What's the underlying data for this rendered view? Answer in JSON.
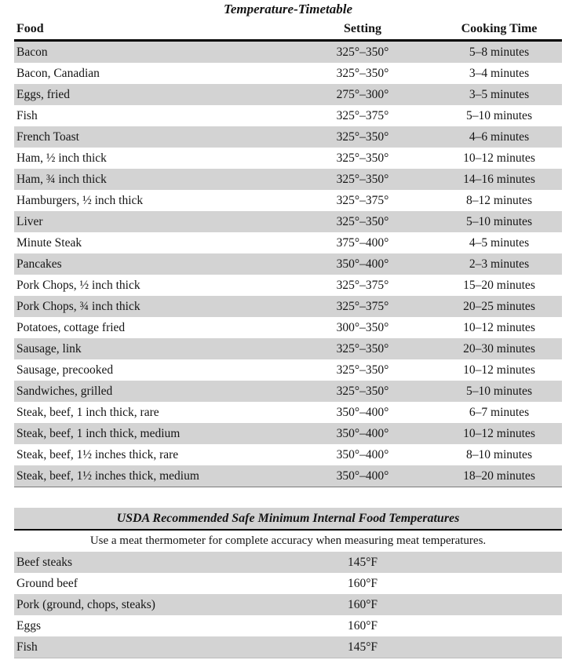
{
  "colors": {
    "stripe": "#d3d3d3",
    "rule": "#000000",
    "text": "#151515"
  },
  "timetable": {
    "title": "Temperature-Timetable",
    "columns": [
      "Food",
      "Setting",
      "Cooking Time"
    ],
    "rows": [
      {
        "food": "Bacon",
        "setting": "325°–350°",
        "time": "5–8 minutes"
      },
      {
        "food": "Bacon, Canadian",
        "setting": "325°–350°",
        "time": "3–4 minutes"
      },
      {
        "food": "Eggs, fried",
        "setting": "275°–300°",
        "time": "3–5 minutes"
      },
      {
        "food": "Fish",
        "setting": "325°–375°",
        "time": "5–10 minutes"
      },
      {
        "food": "French Toast",
        "setting": "325°–350°",
        "time": "4–6 minutes"
      },
      {
        "food": "Ham, ½ inch thick",
        "setting": "325°–350°",
        "time": "10–12 minutes"
      },
      {
        "food": "Ham, ¾ inch thick",
        "setting": "325°–350°",
        "time": "14–16 minutes"
      },
      {
        "food": "Hamburgers, ½ inch thick",
        "setting": "325°–375°",
        "time": "8–12 minutes"
      },
      {
        "food": "Liver",
        "setting": "325°–350°",
        "time": "5–10 minutes"
      },
      {
        "food": "Minute Steak",
        "setting": "375°–400°",
        "time": "4–5 minutes"
      },
      {
        "food": "Pancakes",
        "setting": "350°–400°",
        "time": "2–3 minutes"
      },
      {
        "food": "Pork Chops, ½ inch thick",
        "setting": "325°–375°",
        "time": "15–20 minutes"
      },
      {
        "food": "Pork Chops, ¾ inch thick",
        "setting": "325°–375°",
        "time": "20–25 minutes"
      },
      {
        "food": "Potatoes, cottage fried",
        "setting": "300°–350°",
        "time": "10–12 minutes"
      },
      {
        "food": "Sausage, link",
        "setting": "325°–350°",
        "time": "20–30 minutes"
      },
      {
        "food": "Sausage, precooked",
        "setting": "325°–350°",
        "time": "10–12 minutes"
      },
      {
        "food": "Sandwiches, grilled",
        "setting": "325°–350°",
        "time": "5–10 minutes"
      },
      {
        "food": "Steak, beef, 1 inch thick, rare",
        "setting": "350°–400°",
        "time": "6–7 minutes"
      },
      {
        "food": "Steak, beef, 1 inch thick, medium",
        "setting": "350°–400°",
        "time": "10–12 minutes"
      },
      {
        "food": "Steak, beef, 1½ inches thick, rare",
        "setting": "350°–400°",
        "time": "8–10 minutes"
      },
      {
        "food": "Steak, beef, 1½ inches thick, medium",
        "setting": "350°–400°",
        "time": "18–20 minutes"
      }
    ]
  },
  "usda": {
    "title": "USDA Recommended Safe Minimum Internal Food Temperatures",
    "note": "Use a meat thermometer for complete accuracy when measuring meat temperatures.",
    "rows": [
      {
        "food": "Beef steaks",
        "temp": "145°F"
      },
      {
        "food": "Ground beef",
        "temp": "160°F"
      },
      {
        "food": "Pork (ground, chops, steaks)",
        "temp": "160°F"
      },
      {
        "food": "Eggs",
        "temp": "160°F"
      },
      {
        "food": "Fish",
        "temp": "145°F"
      }
    ]
  }
}
